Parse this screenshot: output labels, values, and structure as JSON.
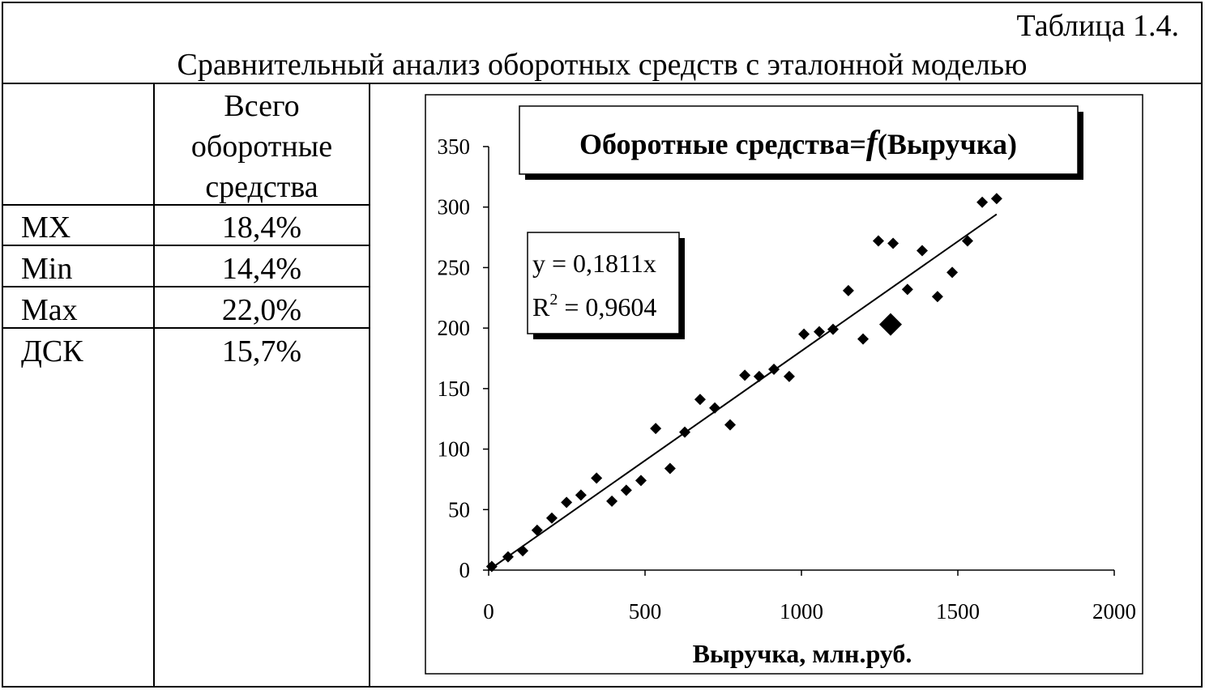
{
  "caption": "Таблица 1.4.",
  "title": "Сравнительный анализ  оборотных средств с эталонной моделью",
  "table": {
    "column_header": "Всего оборотные средства",
    "rows": [
      [
        "MX",
        "18,4%"
      ],
      [
        "Min",
        "14,4%"
      ],
      [
        "Max",
        "22,0%"
      ],
      [
        "ДСК",
        "15,7%"
      ]
    ]
  },
  "chart_data": {
    "type": "scatter",
    "title": [
      "Оборотные средства=",
      "f",
      "(Выручка)"
    ],
    "x_label": "Выручка, млн.руб.",
    "xlim": [
      0,
      2000
    ],
    "xticks": [
      0,
      500,
      1000,
      1500,
      2000
    ],
    "ylim": [
      0,
      350
    ],
    "yticks": [
      0,
      50,
      100,
      150,
      200,
      250,
      300,
      350
    ],
    "color": "#000000",
    "series": [
      {
        "x": [
          10,
          62,
          109,
          155,
          202,
          249,
          295,
          345,
          394,
          440,
          487,
          534,
          580,
          627,
          676,
          723,
          772,
          819,
          865,
          912,
          961,
          1008,
          1057,
          1101,
          1150,
          1197,
          1246,
          1293,
          1339,
          1386,
          1435,
          1482,
          1531,
          1578,
          1624
        ],
        "values": [
          3,
          11,
          16,
          33,
          43,
          56,
          62,
          76,
          57,
          66,
          74,
          117,
          84,
          114,
          141,
          134,
          120,
          161,
          160,
          166,
          160,
          195,
          197,
          199,
          231,
          191,
          272,
          270,
          232,
          264,
          226,
          246,
          272,
          304,
          307
        ]
      },
      {
        "x": [
          1285
        ],
        "values": [
          203
        ]
      }
    ],
    "trendline": {
      "slope": 0.1811,
      "equation": "y = 0,1811x",
      "r2": [
        "R",
        "2",
        " = 0,9604"
      ]
    }
  }
}
